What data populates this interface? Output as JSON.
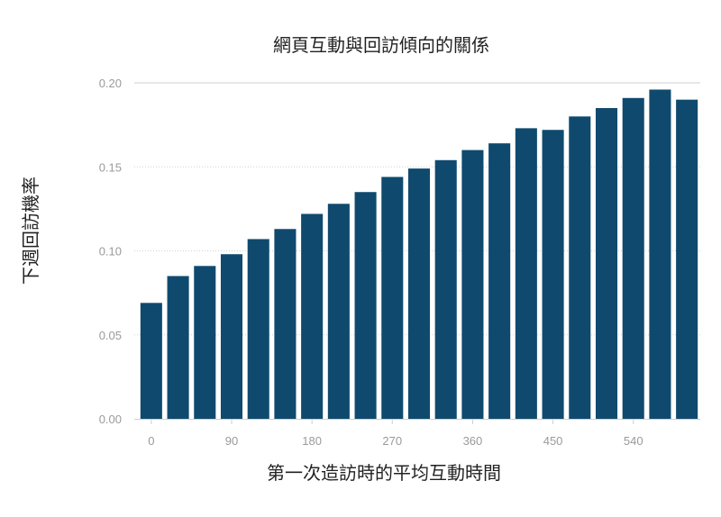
{
  "chart_data": {
    "type": "bar",
    "title": "網頁互動與回訪傾向的關係",
    "xlabel": "第一次造訪時的平均互動時間",
    "ylabel": "下週回訪機率",
    "x": [
      0,
      30,
      60,
      90,
      120,
      150,
      180,
      210,
      240,
      270,
      300,
      330,
      360,
      390,
      420,
      450,
      480,
      510,
      540,
      570,
      600
    ],
    "values": [
      0.069,
      0.085,
      0.091,
      0.098,
      0.107,
      0.113,
      0.122,
      0.128,
      0.135,
      0.144,
      0.149,
      0.154,
      0.16,
      0.164,
      0.173,
      0.172,
      0.18,
      0.185,
      0.191,
      0.196,
      0.19
    ],
    "xticks": [
      "0",
      "90",
      "180",
      "270",
      "360",
      "450",
      "540"
    ],
    "yticks": [
      "0.00",
      "0.05",
      "0.10",
      "0.15",
      "0.20"
    ],
    "ylim": [
      0,
      0.2
    ],
    "grid": true,
    "bar_color": "#0f4a6e"
  }
}
